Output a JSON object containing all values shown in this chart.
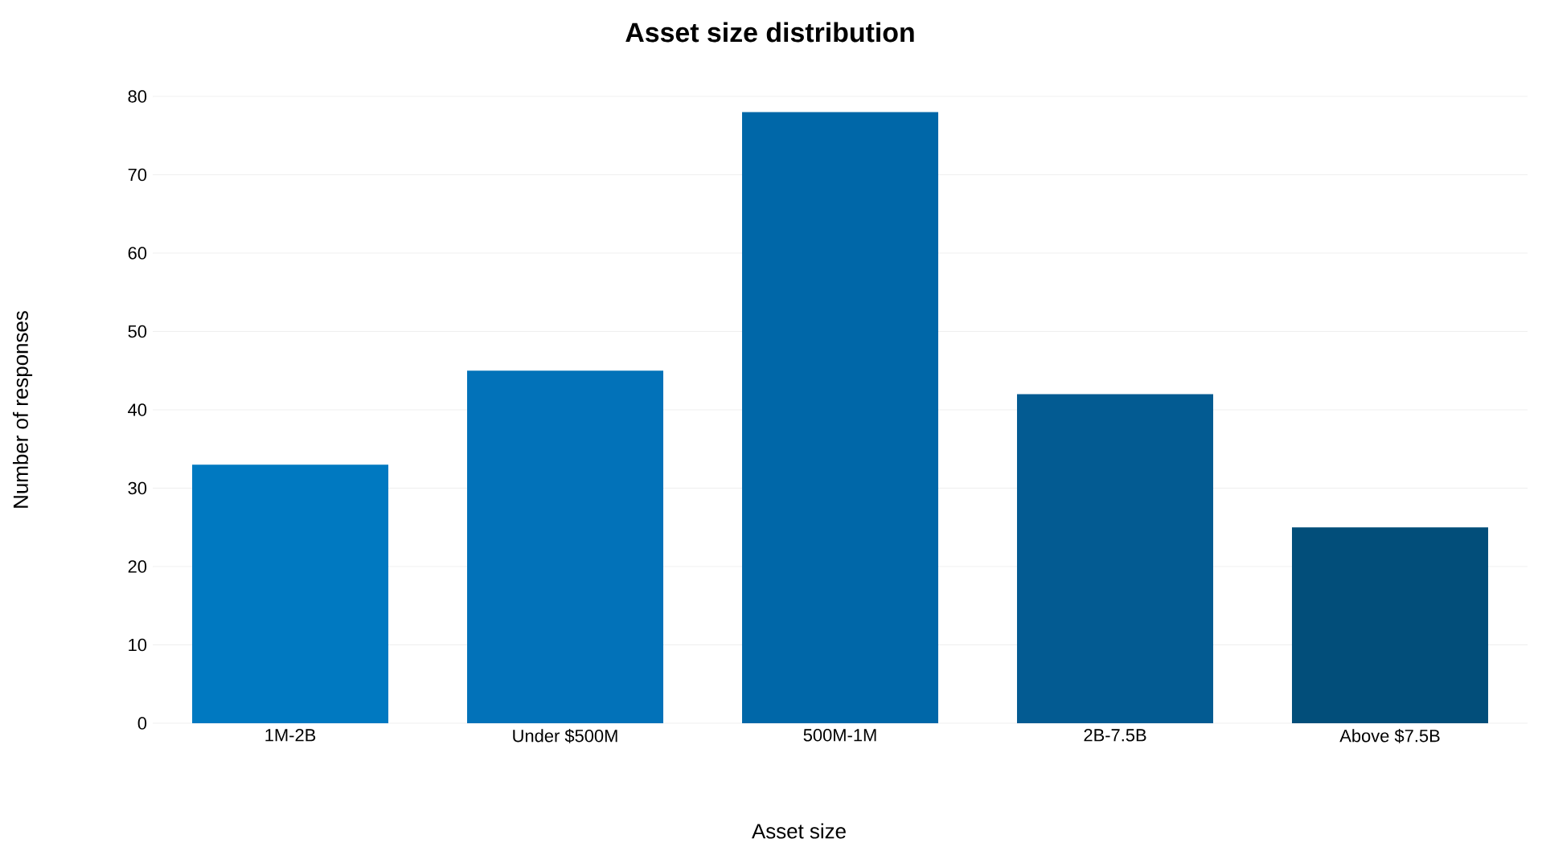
{
  "chart_data": {
    "type": "bar",
    "title": "Asset size distribution",
    "xlabel": "Asset size",
    "ylabel": "Number of responses",
    "categories": [
      "1M-2B",
      "Under $500M",
      "500M-1M",
      "2B-7.5B",
      "Above $7.5B"
    ],
    "values": [
      33,
      45,
      78,
      42,
      25
    ],
    "colors": [
      "#0079c1",
      "#0272b9",
      "#0067a8",
      "#035b92",
      "#024e7a"
    ],
    "ylim": [
      0,
      80
    ],
    "yticks": [
      0,
      10,
      20,
      30,
      40,
      50,
      60,
      70,
      80
    ],
    "grid": "y"
  }
}
